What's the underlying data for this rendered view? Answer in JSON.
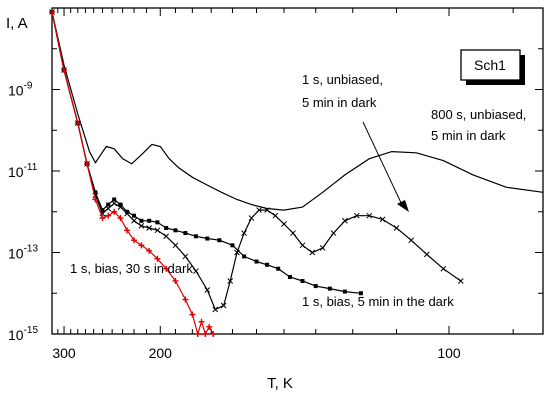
{
  "chart_data": {
    "type": "line",
    "xlabel": "T, K",
    "ylabel": "I, A",
    "y_scale": "log",
    "x_scale": "reciprocal",
    "xlim": [
      320,
      86
    ],
    "ylim": [
      1e-15,
      1e-07
    ],
    "x_ticks": [
      {
        "value": 300,
        "label": "300"
      },
      {
        "value": 200,
        "label": "200"
      },
      {
        "value": 100,
        "label": "100"
      }
    ],
    "y_ticks": [
      {
        "value": 1e-15,
        "mant": "10",
        "exp": "-15"
      },
      {
        "value": 1e-13,
        "mant": "10",
        "exp": "-13"
      },
      {
        "value": 1e-11,
        "mant": "10",
        "exp": "-11"
      },
      {
        "value": 1e-09,
        "mant": "10",
        "exp": "-9"
      }
    ],
    "legend_box": "Sch1",
    "colors": {
      "black": "#000000",
      "red": "#e00000"
    },
    "annotations": [
      {
        "lines": [
          "1 s, unbiased,",
          "5 min in dark"
        ]
      },
      {
        "lines": [
          "800 s, unbiased,",
          "5 min in dark"
        ]
      },
      {
        "lines": [
          "1 s, bias, 30 s in dark"
        ]
      },
      {
        "lines": [
          "1 s, bias, 5 min in the dark"
        ]
      }
    ],
    "series": [
      {
        "marker": "none",
        "color": "#000000",
        "x": [
          320,
          300,
          280,
          265,
          258,
          252,
          246,
          238,
          230,
          222,
          214,
          206,
          200,
          194,
          188,
          180,
          172,
          165,
          158,
          152,
          146,
          140,
          134,
          128,
          122,
          116,
          111,
          106,
          101,
          96,
          91,
          86
        ],
        "y": [
          8e-08,
          4e-09,
          2.5e-10,
          3e-11,
          1.6e-11,
          2.5e-11,
          4e-11,
          3.5e-11,
          2e-11,
          1.5e-11,
          2.5e-11,
          4.5e-11,
          4e-11,
          2e-11,
          1.2e-11,
          7e-12,
          4.5e-12,
          3e-12,
          2e-12,
          1.5e-12,
          1.2e-12,
          1.1e-12,
          1.3e-12,
          3e-12,
          8e-12,
          2e-11,
          3e-11,
          2.8e-11,
          1.8e-11,
          8e-12,
          4e-12,
          3e-12
        ]
      },
      {
        "marker": "cross",
        "color": "#000000",
        "x": [
          320,
          300,
          280,
          268,
          258,
          250,
          244,
          238,
          232,
          226,
          220,
          214,
          208,
          202,
          196,
          190,
          184,
          178,
          172,
          168,
          164,
          161,
          158,
          155,
          152,
          149,
          146,
          143,
          140,
          137,
          134,
          131,
          128,
          125,
          122,
          119,
          116,
          113,
          110,
          107,
          104,
          101,
          98
        ],
        "y": [
          8e-08,
          3e-09,
          1.5e-10,
          1.5e-11,
          2.5e-12,
          9e-13,
          1.2e-12,
          1.6e-12,
          1.3e-12,
          9e-13,
          6e-13,
          4.5e-13,
          4e-13,
          3.5e-13,
          2.5e-13,
          1.5e-13,
          8e-14,
          3.5e-14,
          1.2e-14,
          4e-15,
          5e-15,
          2e-14,
          1e-13,
          3e-13,
          7e-13,
          1.1e-12,
          1.1e-12,
          8e-13,
          5e-13,
          3e-13,
          1.5e-13,
          1e-13,
          1.3e-13,
          3e-13,
          6e-13,
          8e-13,
          8e-13,
          6.5e-13,
          4e-13,
          2e-13,
          9e-14,
          4e-14,
          2e-14
        ]
      },
      {
        "marker": "square",
        "color": "#000000",
        "x": [
          320,
          300,
          280,
          268,
          258,
          250,
          244,
          238,
          232,
          226,
          220,
          214,
          208,
          202,
          196,
          190,
          184,
          178,
          172,
          166,
          160,
          155,
          150,
          146,
          142,
          138,
          134,
          130,
          126,
          122,
          118
        ],
        "y": [
          8e-08,
          3e-09,
          1.5e-10,
          1.5e-11,
          3e-12,
          1.1e-12,
          1.5e-12,
          2e-12,
          1.5e-12,
          1e-12,
          8e-13,
          6e-13,
          6e-13,
          5.5e-13,
          4e-13,
          3.5e-13,
          3e-13,
          2.5e-13,
          2.2e-13,
          2e-13,
          1.5e-13,
          8e-14,
          6e-14,
          5e-14,
          4e-14,
          2.5e-14,
          2e-14,
          1.5e-14,
          1.3e-14,
          1.1e-14,
          1e-14
        ]
      },
      {
        "marker": "plus",
        "color": "#e00000",
        "x": [
          320,
          300,
          280,
          268,
          258,
          250,
          244,
          238,
          232,
          226,
          220,
          214,
          208,
          202,
          196,
          190,
          184,
          180,
          177,
          175,
          173,
          171,
          169
        ],
        "y": [
          8e-08,
          3e-09,
          1.5e-10,
          1.5e-11,
          2e-12,
          7e-13,
          8e-13,
          1e-12,
          7e-13,
          3.5e-13,
          2e-13,
          1.5e-13,
          1.1e-13,
          7e-14,
          4e-14,
          2e-14,
          7e-15,
          3e-15,
          1e-15,
          2e-15,
          1e-15,
          1.5e-15,
          1e-15
        ]
      }
    ]
  }
}
